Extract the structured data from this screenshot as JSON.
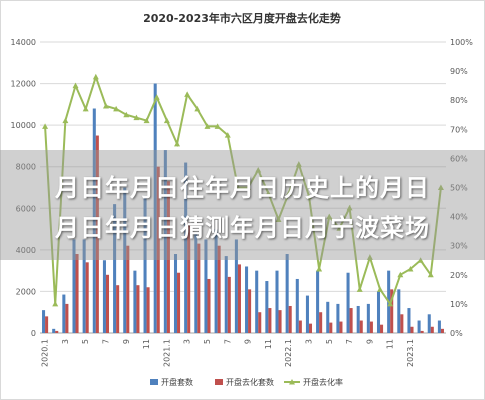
{
  "chart_data": {
    "type": "bar",
    "title": "2020-2023年市六区月度开盘去化走势",
    "x_tick_labels": [
      "2020.1",
      "3",
      "5",
      "7",
      "9",
      "11",
      "2021.1",
      "3",
      "5",
      "7",
      "9",
      "11",
      "2022.1",
      "3",
      "5",
      "7",
      "9",
      "11",
      "2023.1"
    ],
    "left_axis": {
      "ylim": [
        0,
        14000
      ],
      "ticks": [
        0,
        2000,
        4000,
        6000,
        8000,
        10000,
        12000,
        14000
      ]
    },
    "right_axis": {
      "ylim": [
        0,
        100
      ],
      "unit": "%",
      "ticks": [
        0,
        10,
        20,
        30,
        40,
        50,
        60,
        70,
        80,
        90,
        100
      ]
    },
    "series": [
      {
        "name": "开盘套数",
        "axis": "left",
        "kind": "bar",
        "color": "#4f81bd",
        "values": [
          1100,
          200,
          1850,
          4500,
          4500,
          10800,
          3500,
          6200,
          7000,
          3000,
          6600,
          12000,
          8800,
          3800,
          8200,
          4800,
          4500,
          5000,
          3700,
          4500,
          3200,
          3000,
          2500,
          3000,
          3800,
          2600,
          1800,
          3000,
          1500,
          1400,
          2900,
          1300,
          1400,
          2000,
          3000,
          2100,
          1200,
          600,
          900,
          600
        ]
      },
      {
        "name": "开盘去化套数",
        "axis": "left",
        "kind": "bar",
        "color": "#c0504d",
        "values": [
          800,
          100,
          1400,
          3800,
          3400,
          9500,
          2800,
          2300,
          4200,
          2300,
          2200,
          8000,
          7300,
          2900,
          5300,
          4300,
          2600,
          4200,
          2700,
          3300,
          2100,
          1000,
          1200,
          1100,
          1300,
          600,
          450,
          1000,
          500,
          550,
          1200,
          600,
          550,
          400,
          2100,
          900,
          300,
          100,
          300,
          200
        ]
      },
      {
        "name": "开盘去化率",
        "axis": "right",
        "kind": "line",
        "color": "#9bbb59",
        "values": [
          71,
          10,
          73,
          85,
          77,
          88,
          78,
          77,
          75,
          74,
          73,
          81,
          73,
          65,
          82,
          77,
          71,
          71,
          68,
          50,
          50,
          56,
          48,
          39,
          48,
          58,
          47,
          22,
          40,
          36,
          43,
          15,
          26,
          15,
          10,
          20,
          22,
          25,
          20,
          50
        ]
      }
    ]
  },
  "overlay": {
    "line1": "月日年月日往年月日历史上的月日",
    "line2": "月日年月日猜测年月日月宁波菜场"
  }
}
